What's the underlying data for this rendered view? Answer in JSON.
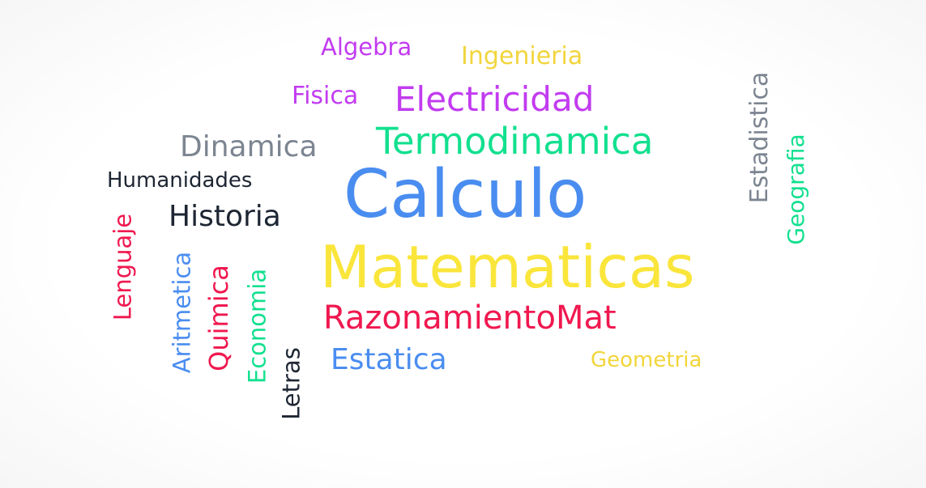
{
  "words": [
    {
      "id": "algebra",
      "text": "Algebra",
      "color": "#c23bf0"
    },
    {
      "id": "ingenieria",
      "text": "Ingenieria",
      "color": "#f2d53c"
    },
    {
      "id": "fisica",
      "text": "Fisica",
      "color": "#c23bf0"
    },
    {
      "id": "electricidad",
      "text": "Electricidad",
      "color": "#c23bf0"
    },
    {
      "id": "dinamica",
      "text": "Dinamica",
      "color": "#7c8591"
    },
    {
      "id": "termodinamica",
      "text": "Termodinamica",
      "color": "#12e08f"
    },
    {
      "id": "humanidades",
      "text": "Humanidades",
      "color": "#1e2633"
    },
    {
      "id": "historia",
      "text": "Historia",
      "color": "#1e2633"
    },
    {
      "id": "calculo",
      "text": "Calculo",
      "color": "#4a8df0"
    },
    {
      "id": "matematicas",
      "text": "Matematicas",
      "color": "#fae53b"
    },
    {
      "id": "razonamientomat",
      "text": "RazonamientoMat",
      "color": "#f0184f"
    },
    {
      "id": "estatica",
      "text": "Estatica",
      "color": "#4a8df0"
    },
    {
      "id": "geometria",
      "text": "Geometria",
      "color": "#f2d53c"
    },
    {
      "id": "estadistica",
      "text": "Estadistica",
      "color": "#7c8591"
    },
    {
      "id": "geografia",
      "text": "Geografia",
      "color": "#12e08f"
    },
    {
      "id": "lenguaje",
      "text": "Lenguaje",
      "color": "#f0184f"
    },
    {
      "id": "aritmetica",
      "text": "Aritmetica",
      "color": "#4a8df0"
    },
    {
      "id": "quimica",
      "text": "Quimica",
      "color": "#f0184f"
    },
    {
      "id": "economia",
      "text": "Economia",
      "color": "#12e08f"
    },
    {
      "id": "letras",
      "text": "Letras",
      "color": "#1e2633"
    }
  ]
}
